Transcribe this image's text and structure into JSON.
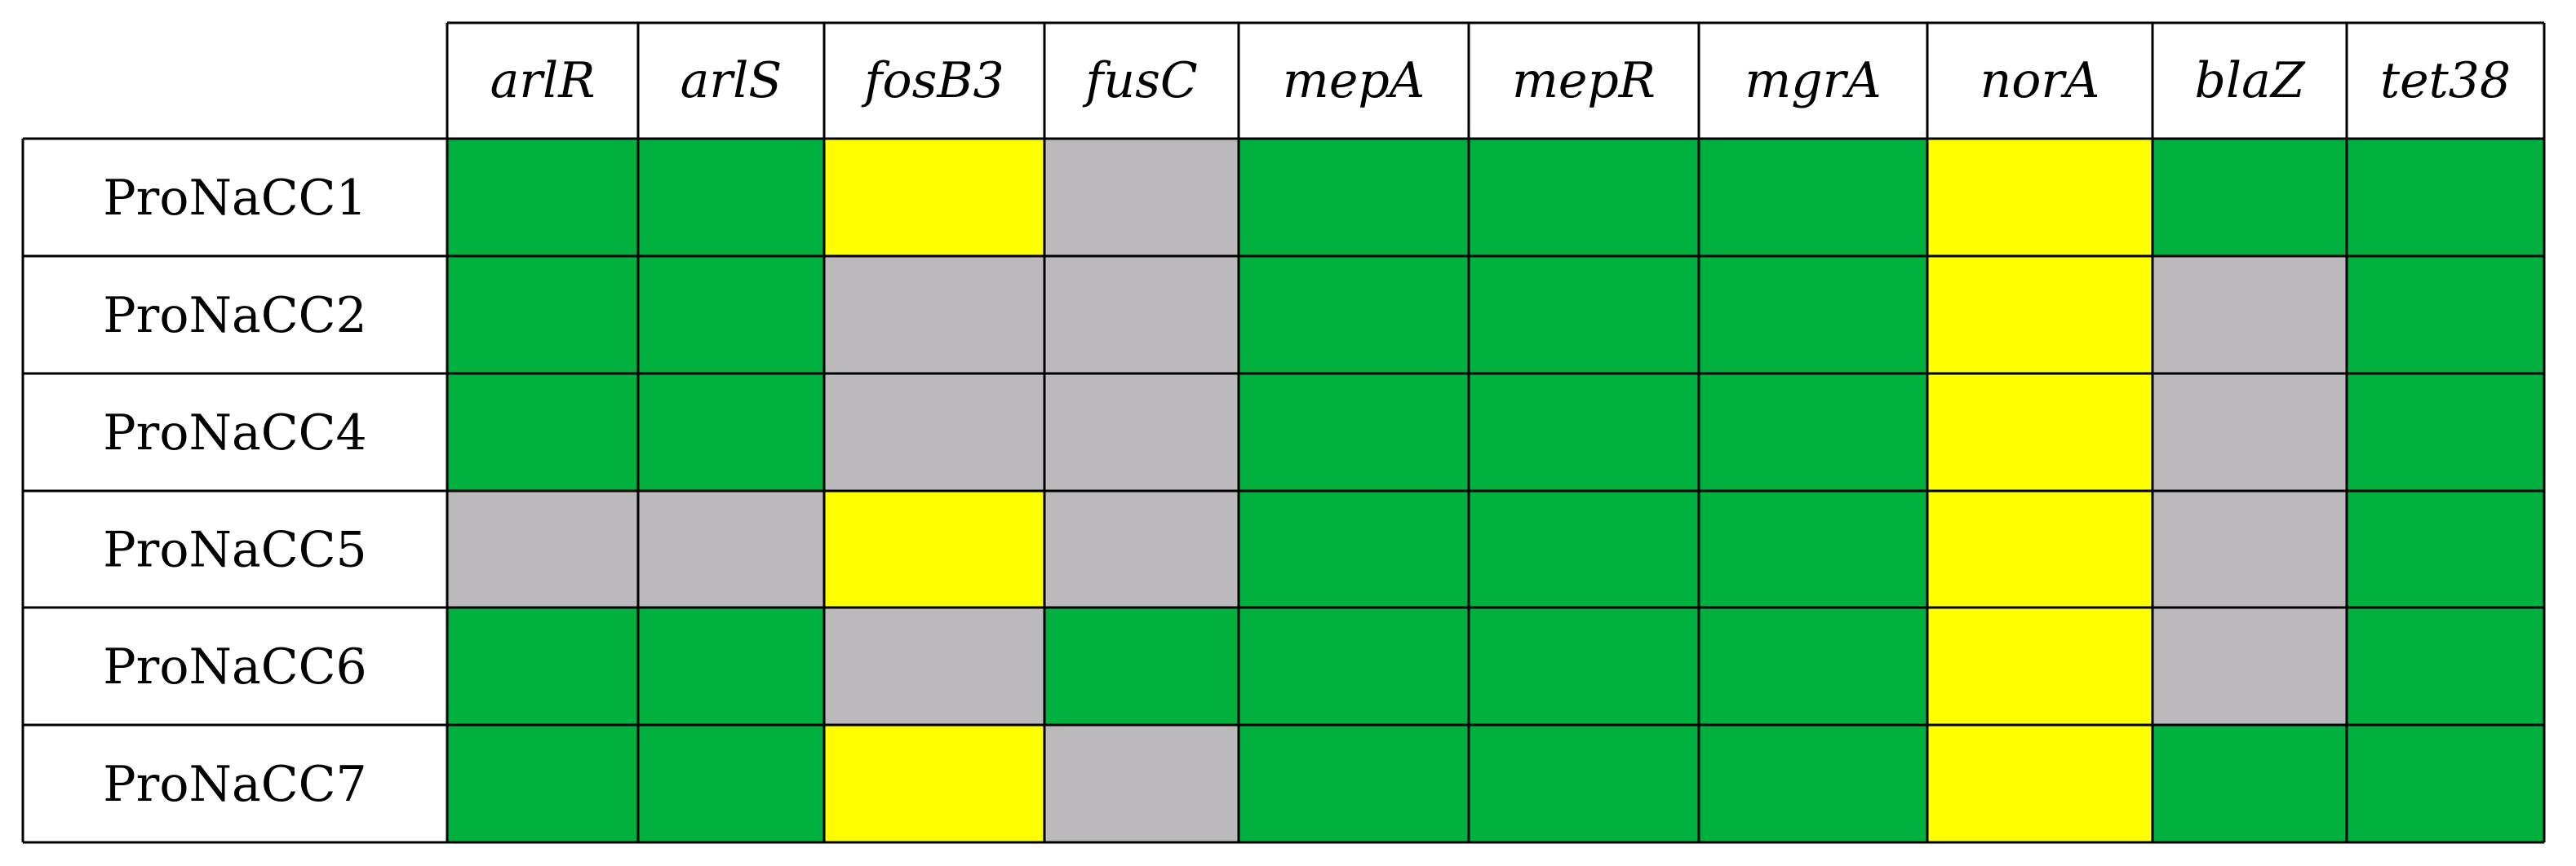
{
  "chart_data": {
    "type": "heatmap",
    "columns": [
      "arlR",
      "arlS",
      "fosB3",
      "fusC",
      "mepA",
      "mepR",
      "mgrA",
      "norA",
      "blaZ",
      "tet38"
    ],
    "rows": [
      "ProNaCC1",
      "ProNaCC2",
      "ProNaCC4",
      "ProNaCC5",
      "ProNaCC6",
      "ProNaCC7"
    ],
    "cells": [
      [
        "G",
        "G",
        "Y",
        "X",
        "G",
        "G",
        "G",
        "Y",
        "G",
        "G"
      ],
      [
        "G",
        "G",
        "X",
        "X",
        "G",
        "G",
        "G",
        "Y",
        "X",
        "G"
      ],
      [
        "G",
        "G",
        "X",
        "X",
        "G",
        "G",
        "G",
        "Y",
        "X",
        "G"
      ],
      [
        "X",
        "X",
        "Y",
        "X",
        "G",
        "G",
        "G",
        "Y",
        "X",
        "G"
      ],
      [
        "G",
        "G",
        "X",
        "G",
        "G",
        "G",
        "G",
        "Y",
        "X",
        "G"
      ],
      [
        "G",
        "G",
        "Y",
        "X",
        "G",
        "G",
        "G",
        "Y",
        "G",
        "G"
      ]
    ],
    "colors": {
      "G": "#00b140",
      "Y": "#ffff00",
      "X": "#bbb9bb"
    }
  }
}
